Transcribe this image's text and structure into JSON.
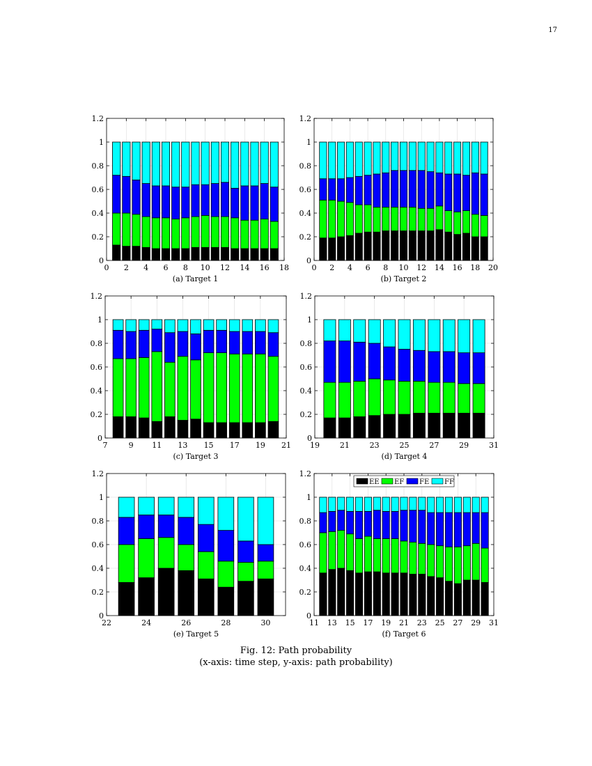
{
  "page": {
    "number": "17"
  },
  "figure": {
    "caption_line1": "Fig. 12: Path probability",
    "caption_line2": "(x-axis: time step, y-axis: path probability)"
  },
  "colors": {
    "EE": "#000000",
    "EF": "#00ff00",
    "FE": "#0000ff",
    "FF": "#00ffff"
  },
  "legend": [
    {
      "key": "EE",
      "label": "EE"
    },
    {
      "key": "EF",
      "label": "EF"
    },
    {
      "key": "FE",
      "label": "FE"
    },
    {
      "key": "FF",
      "label": "FF"
    }
  ],
  "chart_data": [
    {
      "type": "bar",
      "stacked": true,
      "title": "(a) Target 1",
      "xlim": [
        0,
        18
      ],
      "ylim": [
        0,
        1.2
      ],
      "xticks": [
        0,
        2,
        4,
        6,
        8,
        10,
        12,
        14,
        16,
        18
      ],
      "yticks": [
        0,
        0.2,
        0.4,
        0.6,
        0.8,
        1,
        1.2
      ],
      "x": [
        1,
        2,
        3,
        4,
        5,
        6,
        7,
        8,
        9,
        10,
        11,
        12,
        13,
        14,
        15,
        16,
        17
      ],
      "series": [
        {
          "name": "EE",
          "values": [
            0.13,
            0.12,
            0.12,
            0.11,
            0.1,
            0.1,
            0.1,
            0.1,
            0.11,
            0.11,
            0.11,
            0.11,
            0.1,
            0.1,
            0.1,
            0.1,
            0.1
          ]
        },
        {
          "name": "EF",
          "values": [
            0.27,
            0.28,
            0.27,
            0.26,
            0.26,
            0.26,
            0.25,
            0.26,
            0.26,
            0.27,
            0.26,
            0.26,
            0.26,
            0.24,
            0.24,
            0.25,
            0.23
          ]
        },
        {
          "name": "FE",
          "values": [
            0.32,
            0.31,
            0.29,
            0.28,
            0.27,
            0.27,
            0.27,
            0.26,
            0.27,
            0.26,
            0.28,
            0.29,
            0.25,
            0.29,
            0.29,
            0.3,
            0.29
          ]
        },
        {
          "name": "FF",
          "values": [
            0.28,
            0.29,
            0.32,
            0.35,
            0.37,
            0.37,
            0.38,
            0.38,
            0.36,
            0.36,
            0.35,
            0.34,
            0.39,
            0.37,
            0.37,
            0.35,
            0.38
          ]
        }
      ]
    },
    {
      "type": "bar",
      "stacked": true,
      "title": "(b) Target 2",
      "xlim": [
        0,
        20
      ],
      "ylim": [
        0,
        1.2
      ],
      "xticks": [
        0,
        2,
        4,
        6,
        8,
        10,
        12,
        14,
        16,
        18,
        20
      ],
      "yticks": [
        0,
        0.2,
        0.4,
        0.6,
        0.8,
        1,
        1.2
      ],
      "x": [
        1,
        2,
        3,
        4,
        5,
        6,
        7,
        8,
        9,
        10,
        11,
        12,
        13,
        14,
        15,
        16,
        17,
        18,
        19
      ],
      "series": [
        {
          "name": "EE",
          "values": [
            0.19,
            0.19,
            0.2,
            0.21,
            0.23,
            0.24,
            0.24,
            0.25,
            0.25,
            0.25,
            0.25,
            0.25,
            0.25,
            0.26,
            0.24,
            0.22,
            0.23,
            0.2,
            0.2
          ]
        },
        {
          "name": "EF",
          "values": [
            0.32,
            0.32,
            0.3,
            0.28,
            0.24,
            0.23,
            0.21,
            0.2,
            0.2,
            0.2,
            0.2,
            0.19,
            0.19,
            0.2,
            0.18,
            0.19,
            0.19,
            0.19,
            0.18
          ]
        },
        {
          "name": "FE",
          "values": [
            0.18,
            0.18,
            0.19,
            0.21,
            0.24,
            0.25,
            0.28,
            0.29,
            0.31,
            0.31,
            0.31,
            0.32,
            0.31,
            0.28,
            0.31,
            0.32,
            0.3,
            0.35,
            0.35
          ]
        },
        {
          "name": "FF",
          "values": [
            0.31,
            0.31,
            0.31,
            0.3,
            0.29,
            0.28,
            0.27,
            0.26,
            0.24,
            0.24,
            0.24,
            0.24,
            0.25,
            0.26,
            0.27,
            0.27,
            0.28,
            0.26,
            0.27
          ]
        }
      ]
    },
    {
      "type": "bar",
      "stacked": true,
      "title": "(c) Target 3",
      "xlim": [
        7,
        21
      ],
      "ylim": [
        0,
        1.2
      ],
      "xticks": [
        7,
        9,
        11,
        13,
        15,
        17,
        19,
        21
      ],
      "yticks": [
        0,
        0.2,
        0.4,
        0.6,
        0.8,
        1,
        1.2
      ],
      "x": [
        8,
        9,
        10,
        11,
        12,
        13,
        14,
        15,
        16,
        17,
        18,
        19,
        20
      ],
      "series": [
        {
          "name": "EE",
          "values": [
            0.18,
            0.18,
            0.17,
            0.14,
            0.18,
            0.15,
            0.16,
            0.13,
            0.13,
            0.13,
            0.13,
            0.13,
            0.14
          ]
        },
        {
          "name": "EF",
          "values": [
            0.49,
            0.49,
            0.51,
            0.59,
            0.46,
            0.54,
            0.5,
            0.59,
            0.59,
            0.58,
            0.58,
            0.58,
            0.55
          ]
        },
        {
          "name": "FE",
          "values": [
            0.24,
            0.23,
            0.23,
            0.19,
            0.25,
            0.21,
            0.22,
            0.19,
            0.19,
            0.19,
            0.19,
            0.19,
            0.2
          ]
        },
        {
          "name": "FF",
          "values": [
            0.09,
            0.1,
            0.09,
            0.08,
            0.11,
            0.1,
            0.12,
            0.09,
            0.09,
            0.1,
            0.1,
            0.1,
            0.11
          ]
        }
      ]
    },
    {
      "type": "bar",
      "stacked": true,
      "title": "(d) Target 4",
      "xlim": [
        19,
        31
      ],
      "ylim": [
        0,
        1.2
      ],
      "xticks": [
        19,
        21,
        23,
        25,
        27,
        29,
        31
      ],
      "yticks": [
        0,
        0.2,
        0.4,
        0.6,
        0.8,
        1,
        1.2
      ],
      "x": [
        20,
        21,
        22,
        23,
        24,
        25,
        26,
        27,
        28,
        29,
        30
      ],
      "series": [
        {
          "name": "EE",
          "values": [
            0.17,
            0.17,
            0.18,
            0.19,
            0.2,
            0.2,
            0.21,
            0.21,
            0.21,
            0.21,
            0.21
          ]
        },
        {
          "name": "EF",
          "values": [
            0.3,
            0.3,
            0.3,
            0.31,
            0.29,
            0.28,
            0.27,
            0.26,
            0.26,
            0.25,
            0.25
          ]
        },
        {
          "name": "FE",
          "values": [
            0.35,
            0.35,
            0.33,
            0.3,
            0.28,
            0.27,
            0.26,
            0.26,
            0.26,
            0.26,
            0.26
          ]
        },
        {
          "name": "FF",
          "values": [
            0.18,
            0.18,
            0.19,
            0.2,
            0.23,
            0.25,
            0.26,
            0.27,
            0.27,
            0.28,
            0.28
          ]
        }
      ]
    },
    {
      "type": "bar",
      "stacked": true,
      "title": "(e) Target 5",
      "xlim": [
        22,
        31
      ],
      "ylim": [
        0,
        1.2
      ],
      "xticks": [
        22,
        24,
        26,
        28,
        30
      ],
      "yticks": [
        0,
        0.2,
        0.4,
        0.6,
        0.8,
        1,
        1.2
      ],
      "x": [
        23,
        24,
        25,
        26,
        27,
        28,
        29,
        30
      ],
      "series": [
        {
          "name": "EE",
          "values": [
            0.28,
            0.32,
            0.4,
            0.38,
            0.31,
            0.24,
            0.29,
            0.31
          ]
        },
        {
          "name": "EF",
          "values": [
            0.32,
            0.33,
            0.26,
            0.22,
            0.23,
            0.22,
            0.16,
            0.15
          ]
        },
        {
          "name": "FE",
          "values": [
            0.23,
            0.2,
            0.19,
            0.23,
            0.23,
            0.26,
            0.18,
            0.14
          ]
        },
        {
          "name": "FF",
          "values": [
            0.17,
            0.15,
            0.15,
            0.17,
            0.23,
            0.28,
            0.37,
            0.4
          ]
        }
      ]
    },
    {
      "type": "bar",
      "stacked": true,
      "title": "(f) Target 6",
      "xlim": [
        11,
        31
      ],
      "ylim": [
        0,
        1.2
      ],
      "xticks": [
        11,
        13,
        15,
        17,
        19,
        21,
        23,
        25,
        27,
        29,
        31
      ],
      "yticks": [
        0,
        0.2,
        0.4,
        0.6,
        0.8,
        1,
        1.2
      ],
      "legend_position": "top-center",
      "x": [
        12,
        13,
        14,
        15,
        16,
        17,
        18,
        19,
        20,
        21,
        22,
        23,
        24,
        25,
        26,
        27,
        28,
        29,
        30
      ],
      "series": [
        {
          "name": "EE",
          "values": [
            0.36,
            0.39,
            0.4,
            0.38,
            0.36,
            0.37,
            0.37,
            0.36,
            0.36,
            0.36,
            0.35,
            0.35,
            0.33,
            0.32,
            0.29,
            0.27,
            0.3,
            0.3,
            0.28
          ]
        },
        {
          "name": "EF",
          "values": [
            0.34,
            0.32,
            0.32,
            0.31,
            0.29,
            0.3,
            0.28,
            0.29,
            0.29,
            0.27,
            0.27,
            0.26,
            0.27,
            0.27,
            0.29,
            0.31,
            0.29,
            0.31,
            0.29
          ]
        },
        {
          "name": "FE",
          "values": [
            0.17,
            0.17,
            0.17,
            0.19,
            0.23,
            0.21,
            0.24,
            0.23,
            0.23,
            0.26,
            0.27,
            0.28,
            0.27,
            0.28,
            0.29,
            0.29,
            0.28,
            0.26,
            0.3
          ]
        },
        {
          "name": "FF",
          "values": [
            0.13,
            0.12,
            0.11,
            0.12,
            0.12,
            0.12,
            0.11,
            0.12,
            0.12,
            0.11,
            0.11,
            0.11,
            0.13,
            0.13,
            0.13,
            0.13,
            0.13,
            0.13,
            0.13
          ]
        }
      ]
    }
  ]
}
